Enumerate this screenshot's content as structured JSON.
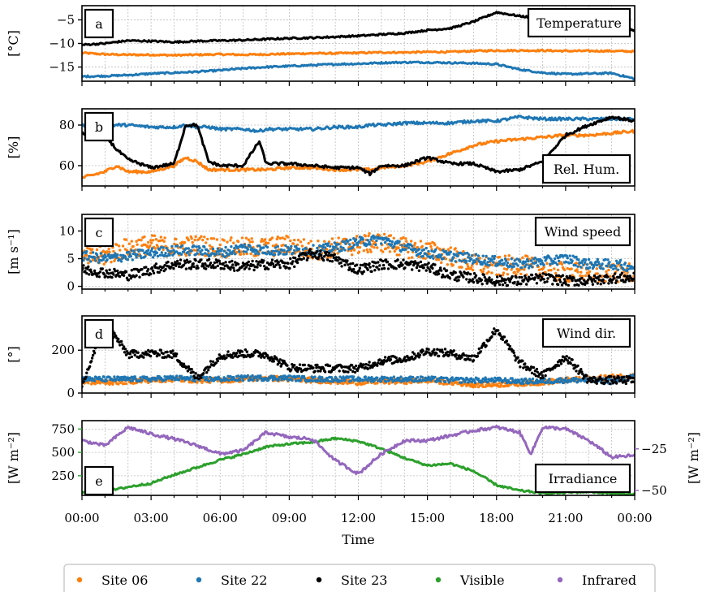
{
  "colors": {
    "site06": "#ff7f0e",
    "site22": "#1f77b4",
    "site23": "#000000",
    "visible": "#2ca02c",
    "infrared": "#9467bd"
  },
  "xaxis": {
    "label": "Time",
    "ticks": [
      "00:00",
      "03:00",
      "06:00",
      "09:00",
      "12:00",
      "15:00",
      "18:00",
      "21:00",
      "00:00"
    ],
    "range_hours": [
      0,
      24
    ]
  },
  "legend": {
    "placement": "bottom-center",
    "items": [
      {
        "label": "Site 06",
        "color": "#ff7f0e"
      },
      {
        "label": "Site 22",
        "color": "#1f77b4"
      },
      {
        "label": "Site 23",
        "color": "#000000"
      },
      {
        "label": "Visible",
        "color": "#2ca02c"
      },
      {
        "label": "Infrared",
        "color": "#9467bd"
      }
    ]
  },
  "chart_data": [
    {
      "type": "line",
      "letter": "a",
      "title": "Temperature",
      "ylabel": "[°C]",
      "ylim": [
        -18,
        -2
      ],
      "yticks": [
        -15,
        -10,
        -5
      ],
      "ytick_labels": [
        "−15",
        "−10",
        "−5"
      ],
      "grid": true,
      "x_hours": [
        0,
        1,
        2,
        3,
        4,
        5,
        6,
        7,
        8,
        9,
        10,
        11,
        12,
        13,
        14,
        15,
        16,
        17,
        18,
        19,
        20,
        21,
        22,
        23,
        24
      ],
      "series": [
        {
          "name": "Site 06",
          "color_key": "site06",
          "values": [
            -12,
            -12.3,
            -12.4,
            -12.4,
            -12.5,
            -12.4,
            -12.3,
            -12.4,
            -12.3,
            -12.2,
            -12.1,
            -12.1,
            -12.0,
            -11.9,
            -11.9,
            -11.8,
            -11.8,
            -11.6,
            -11.5,
            -11.5,
            -11.5,
            -11.6,
            -11.6,
            -11.6,
            -11.7
          ]
        },
        {
          "name": "Site 22",
          "color_key": "site22",
          "values": [
            -17,
            -16.9,
            -16.7,
            -16.4,
            -16.2,
            -16.0,
            -15.7,
            -15.3,
            -15.0,
            -14.8,
            -14.6,
            -14.4,
            -14.3,
            -14.1,
            -14.0,
            -14.0,
            -14.1,
            -14.2,
            -14.4,
            -15.5,
            -16.2,
            -16.5,
            -16.4,
            -16.3,
            -17.5
          ]
        },
        {
          "name": "Site 23",
          "color_key": "site23",
          "values": [
            -10.3,
            -10.0,
            -9.4,
            -9.5,
            -9.7,
            -9.5,
            -9.4,
            -9.3,
            -9.1,
            -8.9,
            -8.8,
            -8.6,
            -8.4,
            -8.1,
            -7.8,
            -7.2,
            -6.8,
            -5.4,
            -3.4,
            -4.2,
            -4.8,
            -6.0,
            -5.5,
            -6.4,
            -7.2
          ]
        }
      ]
    },
    {
      "type": "line",
      "letter": "b",
      "title": "Rel. Hum.",
      "ylabel": "[%]",
      "ylim": [
        50,
        88
      ],
      "yticks": [
        60,
        80
      ],
      "ytick_labels": [
        "60",
        "80"
      ],
      "grid": true,
      "x_hours": [
        0,
        1,
        1.5,
        2,
        3,
        4,
        4.5,
        5,
        5.5,
        6,
        7,
        7.7,
        8,
        9,
        10,
        11,
        12,
        12.5,
        13,
        14,
        15,
        16,
        17,
        18,
        19,
        20,
        21,
        22,
        23,
        24
      ],
      "series": [
        {
          "name": "Site 06",
          "color_key": "site06",
          "values": [
            54,
            57,
            60,
            57,
            57,
            60,
            64,
            62,
            58,
            58,
            58,
            58,
            58,
            59,
            59,
            58,
            58,
            58,
            59,
            60,
            62,
            66,
            70,
            72,
            73,
            74,
            75,
            75,
            76,
            77
          ]
        },
        {
          "name": "Site 22",
          "color_key": "site22",
          "values": [
            80,
            80,
            80,
            80,
            79,
            79,
            80,
            79,
            79,
            78,
            78,
            77,
            78,
            78,
            78,
            79,
            79,
            80,
            80,
            81,
            81,
            81,
            82,
            82,
            84,
            83,
            83,
            83,
            83,
            83
          ]
        },
        {
          "name": "Site 23",
          "color_key": "site23",
          "values": [
            76,
            75,
            68,
            63,
            59,
            61,
            80,
            80,
            62,
            60,
            60,
            72,
            61,
            61,
            60,
            59,
            59,
            56,
            60,
            60,
            64,
            61,
            61,
            57,
            58,
            62,
            75,
            80,
            84,
            82
          ]
        }
      ]
    },
    {
      "type": "scatter",
      "letter": "c",
      "title": "Wind speed",
      "ylabel": "[m s⁻¹]",
      "ylim": [
        -0.5,
        13
      ],
      "yticks": [
        0,
        5,
        10
      ],
      "ytick_labels": [
        "0",
        "5",
        "10"
      ],
      "grid": true,
      "x_hours": [
        0,
        1,
        2,
        3,
        4,
        5,
        6,
        7,
        8,
        9,
        10,
        11,
        12,
        13,
        14,
        15,
        16,
        17,
        18,
        19,
        20,
        21,
        22,
        23,
        24
      ],
      "series": [
        {
          "name": "Site 06",
          "color_key": "site06",
          "values": [
            5,
            5.5,
            7,
            7.5,
            7,
            7.5,
            7,
            7,
            7,
            7.5,
            6.5,
            7,
            7.5,
            8,
            7,
            6.5,
            5.5,
            4,
            3.5,
            4,
            3,
            2.5,
            2.5,
            2.5,
            2.5
          ]
        },
        {
          "name": "Site 22",
          "color_key": "site22",
          "values": [
            5.5,
            5,
            5.5,
            6,
            6.5,
            6.5,
            6,
            7,
            6.5,
            6.5,
            6.5,
            7,
            8,
            8.5,
            7,
            6,
            5.5,
            5,
            4.5,
            4,
            4.5,
            5,
            4,
            4,
            3.5
          ]
        },
        {
          "name": "Site 23",
          "color_key": "site23",
          "values": [
            3,
            2.5,
            2,
            3,
            4,
            4,
            4,
            3.5,
            4,
            4,
            6,
            5,
            3,
            4,
            4,
            3.5,
            2,
            1.5,
            1,
            1,
            1.5,
            1,
            1,
            1.5,
            1.5
          ]
        }
      ]
    },
    {
      "type": "scatter",
      "letter": "d",
      "title": "Wind dir.",
      "ylabel": "[°]",
      "ylim": [
        0,
        360
      ],
      "yticks": [
        0,
        200
      ],
      "ytick_labels": [
        "0",
        "200"
      ],
      "grid": true,
      "x_hours": [
        0,
        1,
        2,
        3,
        4,
        5,
        6,
        7,
        8,
        9,
        10,
        11,
        12,
        13,
        14,
        15,
        16,
        17,
        18,
        19,
        20,
        21,
        22,
        23,
        24
      ],
      "series": [
        {
          "name": "Site 06",
          "color_key": "site06",
          "values": [
            55,
            50,
            55,
            60,
            65,
            60,
            60,
            65,
            70,
            65,
            60,
            55,
            50,
            55,
            55,
            60,
            50,
            40,
            40,
            45,
            50,
            60,
            65,
            75,
            80
          ]
        },
        {
          "name": "Site 22",
          "color_key": "site22",
          "values": [
            65,
            65,
            65,
            65,
            70,
            65,
            65,
            70,
            70,
            70,
            65,
            65,
            65,
            65,
            65,
            65,
            60,
            60,
            60,
            55,
            55,
            60,
            60,
            55,
            75
          ]
        },
        {
          "name": "Site 23",
          "color_key": "site23",
          "values": [
            30,
            330,
            180,
            185,
            180,
            70,
            175,
            185,
            180,
            120,
            115,
            115,
            115,
            150,
            160,
            195,
            185,
            160,
            300,
            140,
            80,
            170,
            60,
            60,
            60
          ]
        }
      ]
    },
    {
      "type": "line",
      "letter": "e",
      "title": "Irradiance",
      "ylabel": "[W m⁻²]",
      "ylim": [
        40,
        840
      ],
      "yticks": [
        250,
        500,
        750
      ],
      "ytick_labels": [
        "250",
        "500",
        "750"
      ],
      "ylabel_right": "[W m⁻²]",
      "ylim_right": [
        -53,
        -8
      ],
      "yticks_right": [
        -50,
        -25
      ],
      "ytick_labels_right": [
        "−50",
        "−25"
      ],
      "grid": true,
      "x_hours": [
        0,
        1,
        2,
        3,
        4,
        5,
        6,
        7,
        8,
        9,
        10,
        11,
        12,
        13,
        14,
        15,
        16,
        17,
        18,
        19,
        19.5,
        20,
        21,
        22,
        23,
        24
      ],
      "series": [
        {
          "name": "Visible",
          "axis": "left",
          "color_key": "visible",
          "values": [
            70,
            80,
            130,
            170,
            260,
            340,
            420,
            480,
            560,
            590,
            610,
            650,
            620,
            540,
            440,
            360,
            380,
            300,
            150,
            90,
            80,
            60,
            70,
            80,
            60,
            50
          ]
        },
        {
          "name": "Infrared",
          "axis": "right",
          "color_key": "infrared",
          "values": [
            -20,
            -23,
            -12,
            -16,
            -19,
            -23,
            -28,
            -26,
            -15,
            -18,
            -19,
            -32,
            -40,
            -28,
            -20,
            -20,
            -17,
            -14,
            -12,
            -15,
            -28,
            -12,
            -13,
            -20,
            -30,
            -29
          ]
        }
      ]
    }
  ]
}
